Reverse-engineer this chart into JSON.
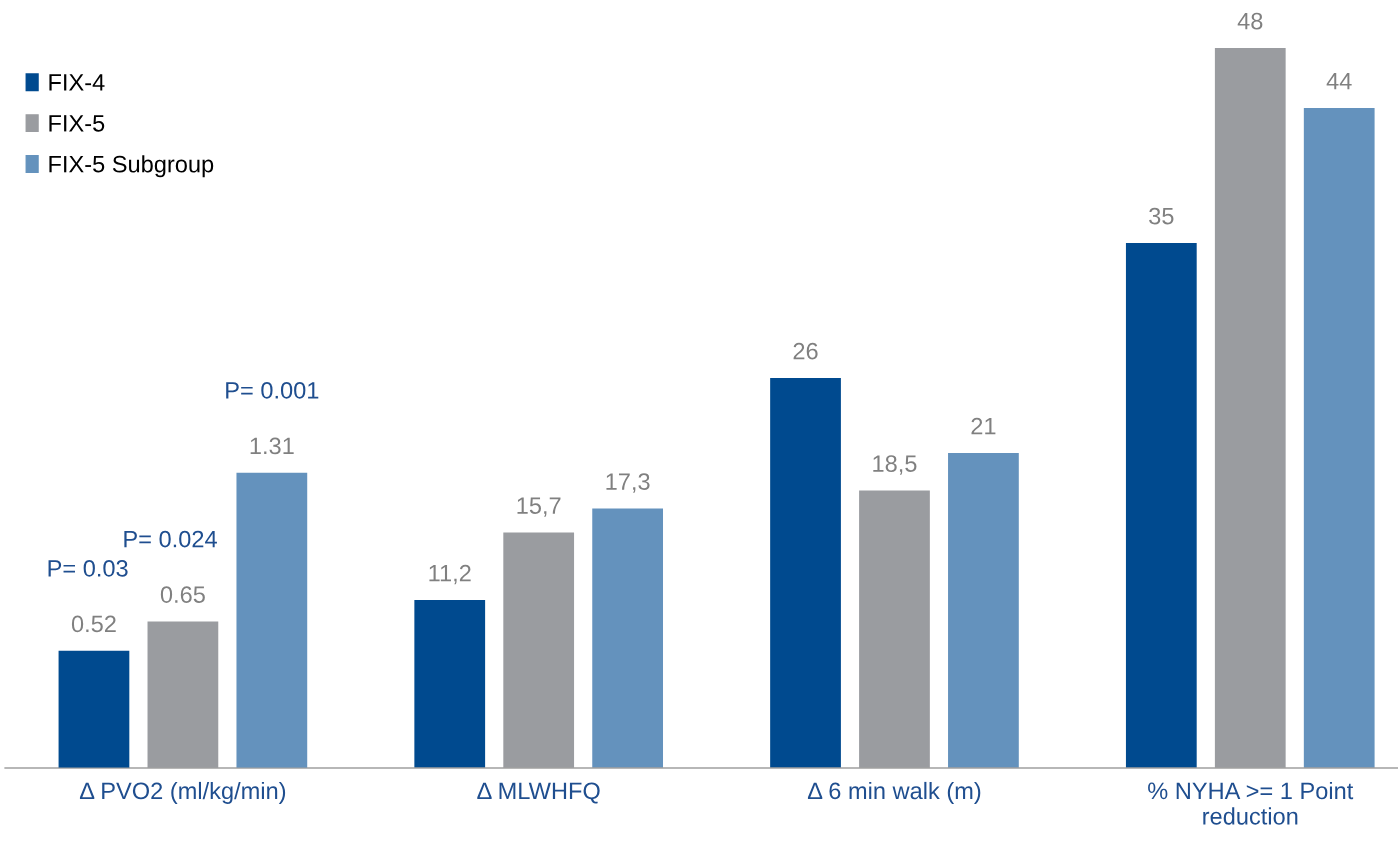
{
  "chart_data": {
    "type": "bar",
    "categories": [
      "Δ PVO2 (ml/kg/min)",
      "Δ MLWHFQ",
      "Δ 6 min walk (m)",
      "% NYHA >= 1 Point\nreduction"
    ],
    "tick_labels": "x",
    "legend": "top left",
    "grid": false,
    "series": [
      {
        "name": "FIX-4",
        "color": "#004a8f",
        "values": [
          null,
          11.2,
          26,
          35
        ],
        "value_labels": [
          null,
          "11,2",
          "26",
          "35"
        ]
      },
      {
        "name": "FIX-5",
        "color": "#9a9ca0",
        "values": [
          null,
          15.7,
          18.5,
          48
        ],
        "value_labels": [
          null,
          "15,7",
          "18,5",
          "48"
        ]
      },
      {
        "name": "FIX-5 Subgroup",
        "color": "#6492bd",
        "values": [
          null,
          17.3,
          21,
          44
        ],
        "value_labels": [
          null,
          "17,3",
          "21",
          "44"
        ]
      },
      {
        "color": "#004a8f",
        "axis": "y2",
        "values": [
          0.52,
          null,
          null,
          null
        ],
        "value_labels": [
          "0.52",
          null,
          null,
          null
        ]
      },
      {
        "color": "#9a9ca0",
        "axis": "y2",
        "values": [
          0.65,
          null,
          null,
          null
        ],
        "value_labels": [
          "0.65",
          null,
          null,
          null
        ]
      },
      {
        "color": "#6492bd",
        "axis": "y2",
        "values": [
          1.31,
          null,
          null,
          null
        ],
        "value_labels": [
          "1.31",
          null,
          null,
          null
        ]
      }
    ],
    "annotations": [
      "P= 0.03",
      "P= 0.024",
      "P= 0.001"
    ]
  }
}
